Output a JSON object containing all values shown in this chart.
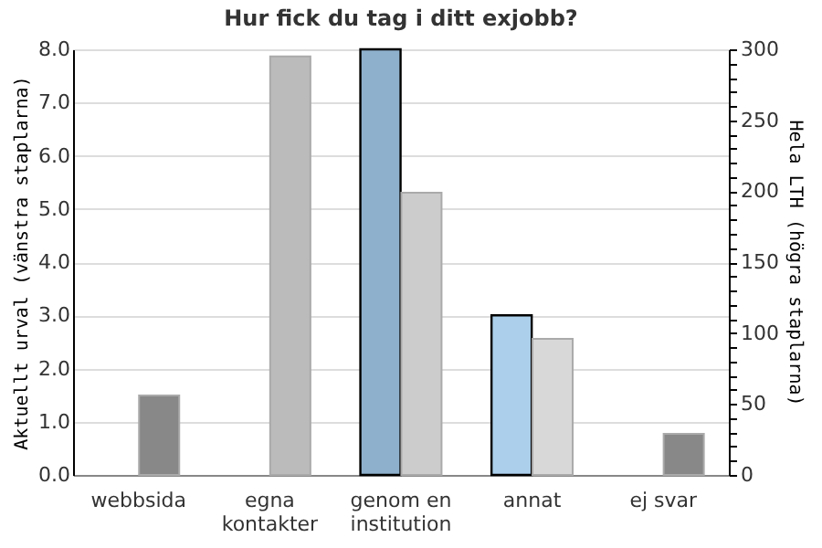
{
  "chart_data": {
    "type": "bar",
    "title": "Hur fick du tag i ditt exjobb?",
    "categories": [
      "webbsida",
      "egna kontakter",
      "genom en institution",
      "annat",
      "ej svar"
    ],
    "ylabel": "Aktuellt urval (vänstra staplarna)",
    "y2label": "Hela LTH (högra staplarna)",
    "series": [
      {
        "axis": "y",
        "values": [
          null,
          null,
          8.0,
          3.0,
          null
        ],
        "colors": [
          "#8eb0cc",
          "#acd0ec",
          "#8eb0cc",
          "#acd0ec",
          "#8eb0cc"
        ]
      },
      {
        "axis": "y2",
        "values": [
          56,
          295,
          199,
          96,
          29
        ],
        "colors": [
          "#888888",
          "#bbbbbb",
          "#cccccc",
          "#d8d8d8",
          "#888888"
        ]
      }
    ],
    "ylim": [
      0,
      8
    ],
    "yticks": [
      {
        "value": 0,
        "label": "0.0"
      },
      {
        "value": 1,
        "label": "1.0"
      },
      {
        "value": 2,
        "label": "2.0"
      },
      {
        "value": 3,
        "label": "3.0"
      },
      {
        "value": 4,
        "label": "4.0"
      },
      {
        "value": 5,
        "label": "5.0"
      },
      {
        "value": 6,
        "label": "6.0"
      },
      {
        "value": 7,
        "label": "7.0"
      },
      {
        "value": 8,
        "label": "8.0"
      }
    ],
    "y2lim": [
      0,
      300
    ],
    "y2ticks": [
      0,
      {
        "value": 10,
        "label": null
      },
      {
        "value": 20,
        "label": null
      },
      {
        "value": 30,
        "label": null
      },
      {
        "value": 40,
        "label": null
      },
      50,
      {
        "value": 60,
        "label": null
      },
      {
        "value": 70,
        "label": null
      },
      {
        "value": 80,
        "label": null
      },
      {
        "value": 90,
        "label": null
      },
      100,
      {
        "value": 110,
        "label": null
      },
      {
        "value": 120,
        "label": null
      },
      {
        "value": 130,
        "label": null
      },
      {
        "value": 140,
        "label": null
      },
      150,
      {
        "value": 160,
        "label": null
      },
      {
        "value": 170,
        "label": null
      },
      {
        "value": 180,
        "label": null
      },
      {
        "value": 190,
        "label": null
      },
      200,
      {
        "value": 210,
        "label": null
      },
      {
        "value": 220,
        "label": null
      },
      {
        "value": 230,
        "label": null
      },
      {
        "value": 240,
        "label": null
      },
      250,
      {
        "value": 260,
        "label": null
      },
      {
        "value": 270,
        "label": null
      },
      {
        "value": 280,
        "label": null
      },
      {
        "value": 290,
        "label": null
      },
      300
    ],
    "grid": "y"
  }
}
